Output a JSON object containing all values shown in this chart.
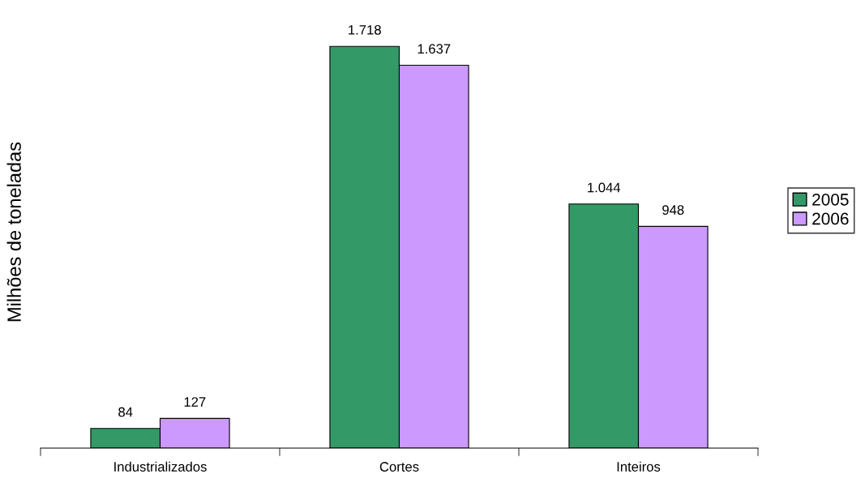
{
  "chart_data": {
    "type": "bar",
    "ylabel": "Milhões de toneladas",
    "categories": [
      "Industrializados",
      "Cortes",
      "Inteiros"
    ],
    "series": [
      {
        "name": "2005",
        "color": "#339966",
        "values": [
          84,
          1718,
          1044
        ],
        "value_labels": [
          "84",
          "1.718",
          "1.044"
        ]
      },
      {
        "name": "2006",
        "color": "#cc99ff",
        "values": [
          127,
          1637,
          948
        ],
        "value_labels": [
          "127",
          "1.637",
          "948"
        ]
      }
    ],
    "legend": "right",
    "grid": false
  }
}
